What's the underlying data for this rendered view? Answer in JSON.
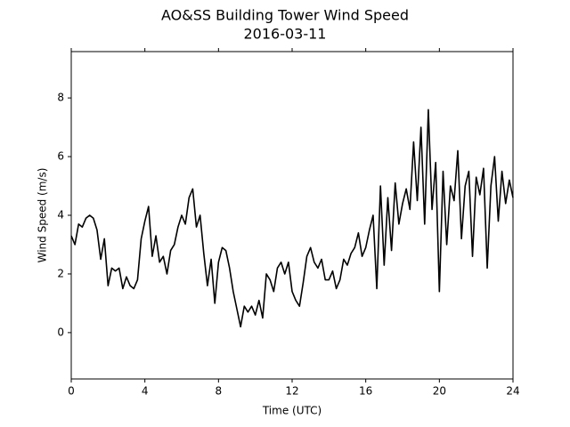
{
  "chart_data": {
    "type": "line",
    "title": "AO&SS Building Tower Wind Speed",
    "subtitle": "2016-03-11",
    "xlabel": "Time (UTC)",
    "ylabel": "Wind Speed (m/s)",
    "x": [
      0,
      0.2,
      0.4,
      0.6,
      0.8,
      1,
      1.2,
      1.4,
      1.6,
      1.8,
      2,
      2.2,
      2.4,
      2.6,
      2.8,
      3,
      3.2,
      3.4,
      3.6,
      3.8,
      4,
      4.2,
      4.4,
      4.6,
      4.8,
      5,
      5.2,
      5.4,
      5.6,
      5.8,
      6,
      6.2,
      6.4,
      6.6,
      6.8,
      7,
      7.2,
      7.4,
      7.6,
      7.8,
      8,
      8.2,
      8.4,
      8.6,
      8.8,
      9,
      9.2,
      9.4,
      9.6,
      9.8,
      10,
      10.2,
      10.4,
      10.6,
      10.8,
      11,
      11.2,
      11.4,
      11.6,
      11.8,
      12,
      12.2,
      12.4,
      12.6,
      12.8,
      13,
      13.2,
      13.4,
      13.6,
      13.8,
      14,
      14.2,
      14.4,
      14.6,
      14.8,
      15,
      15.2,
      15.4,
      15.6,
      15.8,
      16,
      16.2,
      16.4,
      16.6,
      16.8,
      17,
      17.2,
      17.4,
      17.6,
      17.8,
      18,
      18.2,
      18.4,
      18.6,
      18.8,
      19,
      19.2,
      19.4,
      19.6,
      19.8,
      20,
      20.2,
      20.4,
      20.6,
      20.8,
      21,
      21.2,
      21.4,
      21.6,
      21.8,
      22,
      22.2,
      22.4,
      22.6,
      22.8,
      23,
      23.2,
      23.4,
      23.6,
      23.8,
      24
    ],
    "series": [
      {
        "color": "#000000",
        "values": [
          3.3,
          3.0,
          3.7,
          3.6,
          3.9,
          4.0,
          3.9,
          3.5,
          2.5,
          3.2,
          1.6,
          2.2,
          2.1,
          2.2,
          1.5,
          1.9,
          1.6,
          1.5,
          1.8,
          3.2,
          3.8,
          4.3,
          2.6,
          3.3,
          2.4,
          2.6,
          2.0,
          2.8,
          3.0,
          3.6,
          4.0,
          3.7,
          4.6,
          4.9,
          3.6,
          4.0,
          2.7,
          1.6,
          2.5,
          1.0,
          2.4,
          2.9,
          2.8,
          2.2,
          1.4,
          0.8,
          0.2,
          0.9,
          0.7,
          0.9,
          0.6,
          1.1,
          0.5,
          2.0,
          1.8,
          1.4,
          2.2,
          2.4,
          2.0,
          2.4,
          1.4,
          1.1,
          0.9,
          1.7,
          2.6,
          2.9,
          2.4,
          2.2,
          2.5,
          1.8,
          1.8,
          2.1,
          1.5,
          1.8,
          2.5,
          2.3,
          2.7,
          2.9,
          3.4,
          2.6,
          2.9,
          3.5,
          4.0,
          1.5,
          5.0,
          2.3,
          4.6,
          2.8,
          5.1,
          3.7,
          4.4,
          4.9,
          4.2,
          6.5,
          4.5,
          7.0,
          3.7,
          7.6,
          4.2,
          5.8,
          1.4,
          5.5,
          3.0,
          5.0,
          4.5,
          6.2,
          3.2,
          5.0,
          5.5,
          2.6,
          5.3,
          4.7,
          5.6,
          2.2,
          5.0,
          6.0,
          3.8,
          5.5,
          4.4,
          5.2,
          4.6
        ]
      }
    ],
    "xlim": [
      0,
      24
    ],
    "xticks": [
      0,
      4,
      8,
      12,
      16,
      20,
      24
    ],
    "ylim": [
      -1.58,
      9.58
    ],
    "yticks": [
      0,
      2,
      4,
      6,
      8
    ],
    "grid": false
  }
}
